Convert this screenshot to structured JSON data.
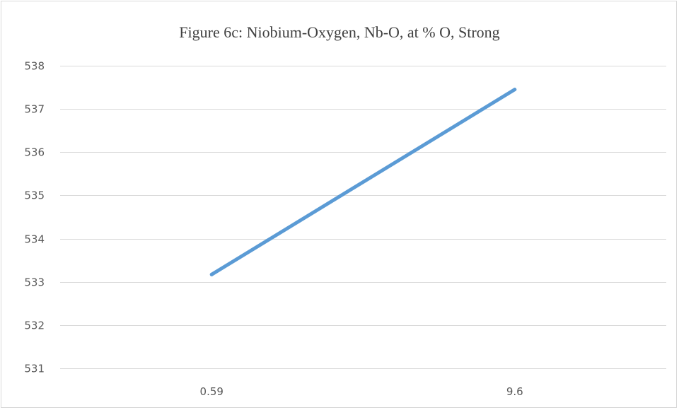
{
  "chart_data": {
    "type": "line",
    "title": "Figure 6c: Niobium-Oxygen,  Nb-O, at % O, Strong",
    "xlabel": "",
    "ylabel": "",
    "categories": [
      "0.59",
      "9.6"
    ],
    "series": [
      {
        "values": [
          533.17,
          537.45
        ],
        "color": "#5b9bd5"
      }
    ],
    "ylim": [
      531,
      538
    ],
    "yticks": [
      531,
      532,
      533,
      534,
      535,
      536,
      537,
      538
    ],
    "grid": true,
    "legend": "none"
  }
}
